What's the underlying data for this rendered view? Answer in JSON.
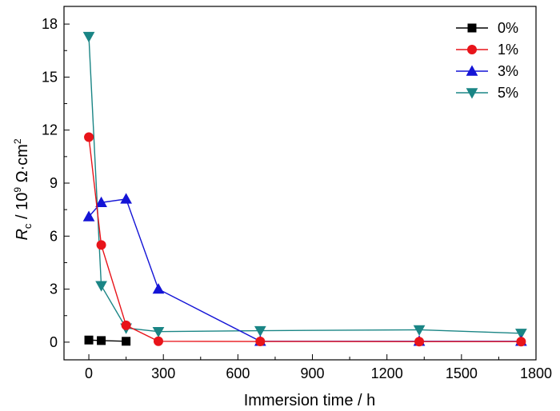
{
  "chart_data": {
    "type": "line",
    "title": "",
    "xlabel": "Immersion time / h",
    "ylabel": {
      "prefix_italic": "R",
      "subscript": "c",
      "mid": " / 10",
      "superscript": "9",
      "unit": " Ω·cm",
      "unit_superscript": "2"
    },
    "xlim": [
      -100,
      1800
    ],
    "ylim": [
      -1,
      19
    ],
    "xticks": [
      0,
      300,
      600,
      900,
      1200,
      1500,
      1800
    ],
    "yticks": [
      0,
      3,
      6,
      9,
      12,
      15,
      18
    ],
    "grid": false,
    "legend_position": "top-right",
    "series": [
      {
        "name": "0%",
        "color": "#000000",
        "marker": "square",
        "x": [
          0,
          50,
          150
        ],
        "y": [
          0.12,
          0.09,
          0.05
        ]
      },
      {
        "name": "1%",
        "color": "#e8141a",
        "marker": "circle",
        "x": [
          0,
          50,
          150,
          280,
          690,
          1330,
          1740
        ],
        "y": [
          11.6,
          5.5,
          0.95,
          0.05,
          0.04,
          0.03,
          0.03
        ]
      },
      {
        "name": "3%",
        "color": "#1414d6",
        "marker": "triangle-up",
        "x": [
          0,
          50,
          150,
          280,
          690,
          1330,
          1740
        ],
        "y": [
          7.1,
          7.9,
          8.1,
          3.0,
          0.05,
          0.05,
          0.05
        ]
      },
      {
        "name": "5%",
        "color": "#1a8585",
        "marker": "triangle-down",
        "x": [
          0,
          50,
          150,
          280,
          690,
          1330,
          1740
        ],
        "y": [
          17.3,
          3.2,
          0.8,
          0.6,
          0.65,
          0.7,
          0.5
        ]
      }
    ]
  }
}
